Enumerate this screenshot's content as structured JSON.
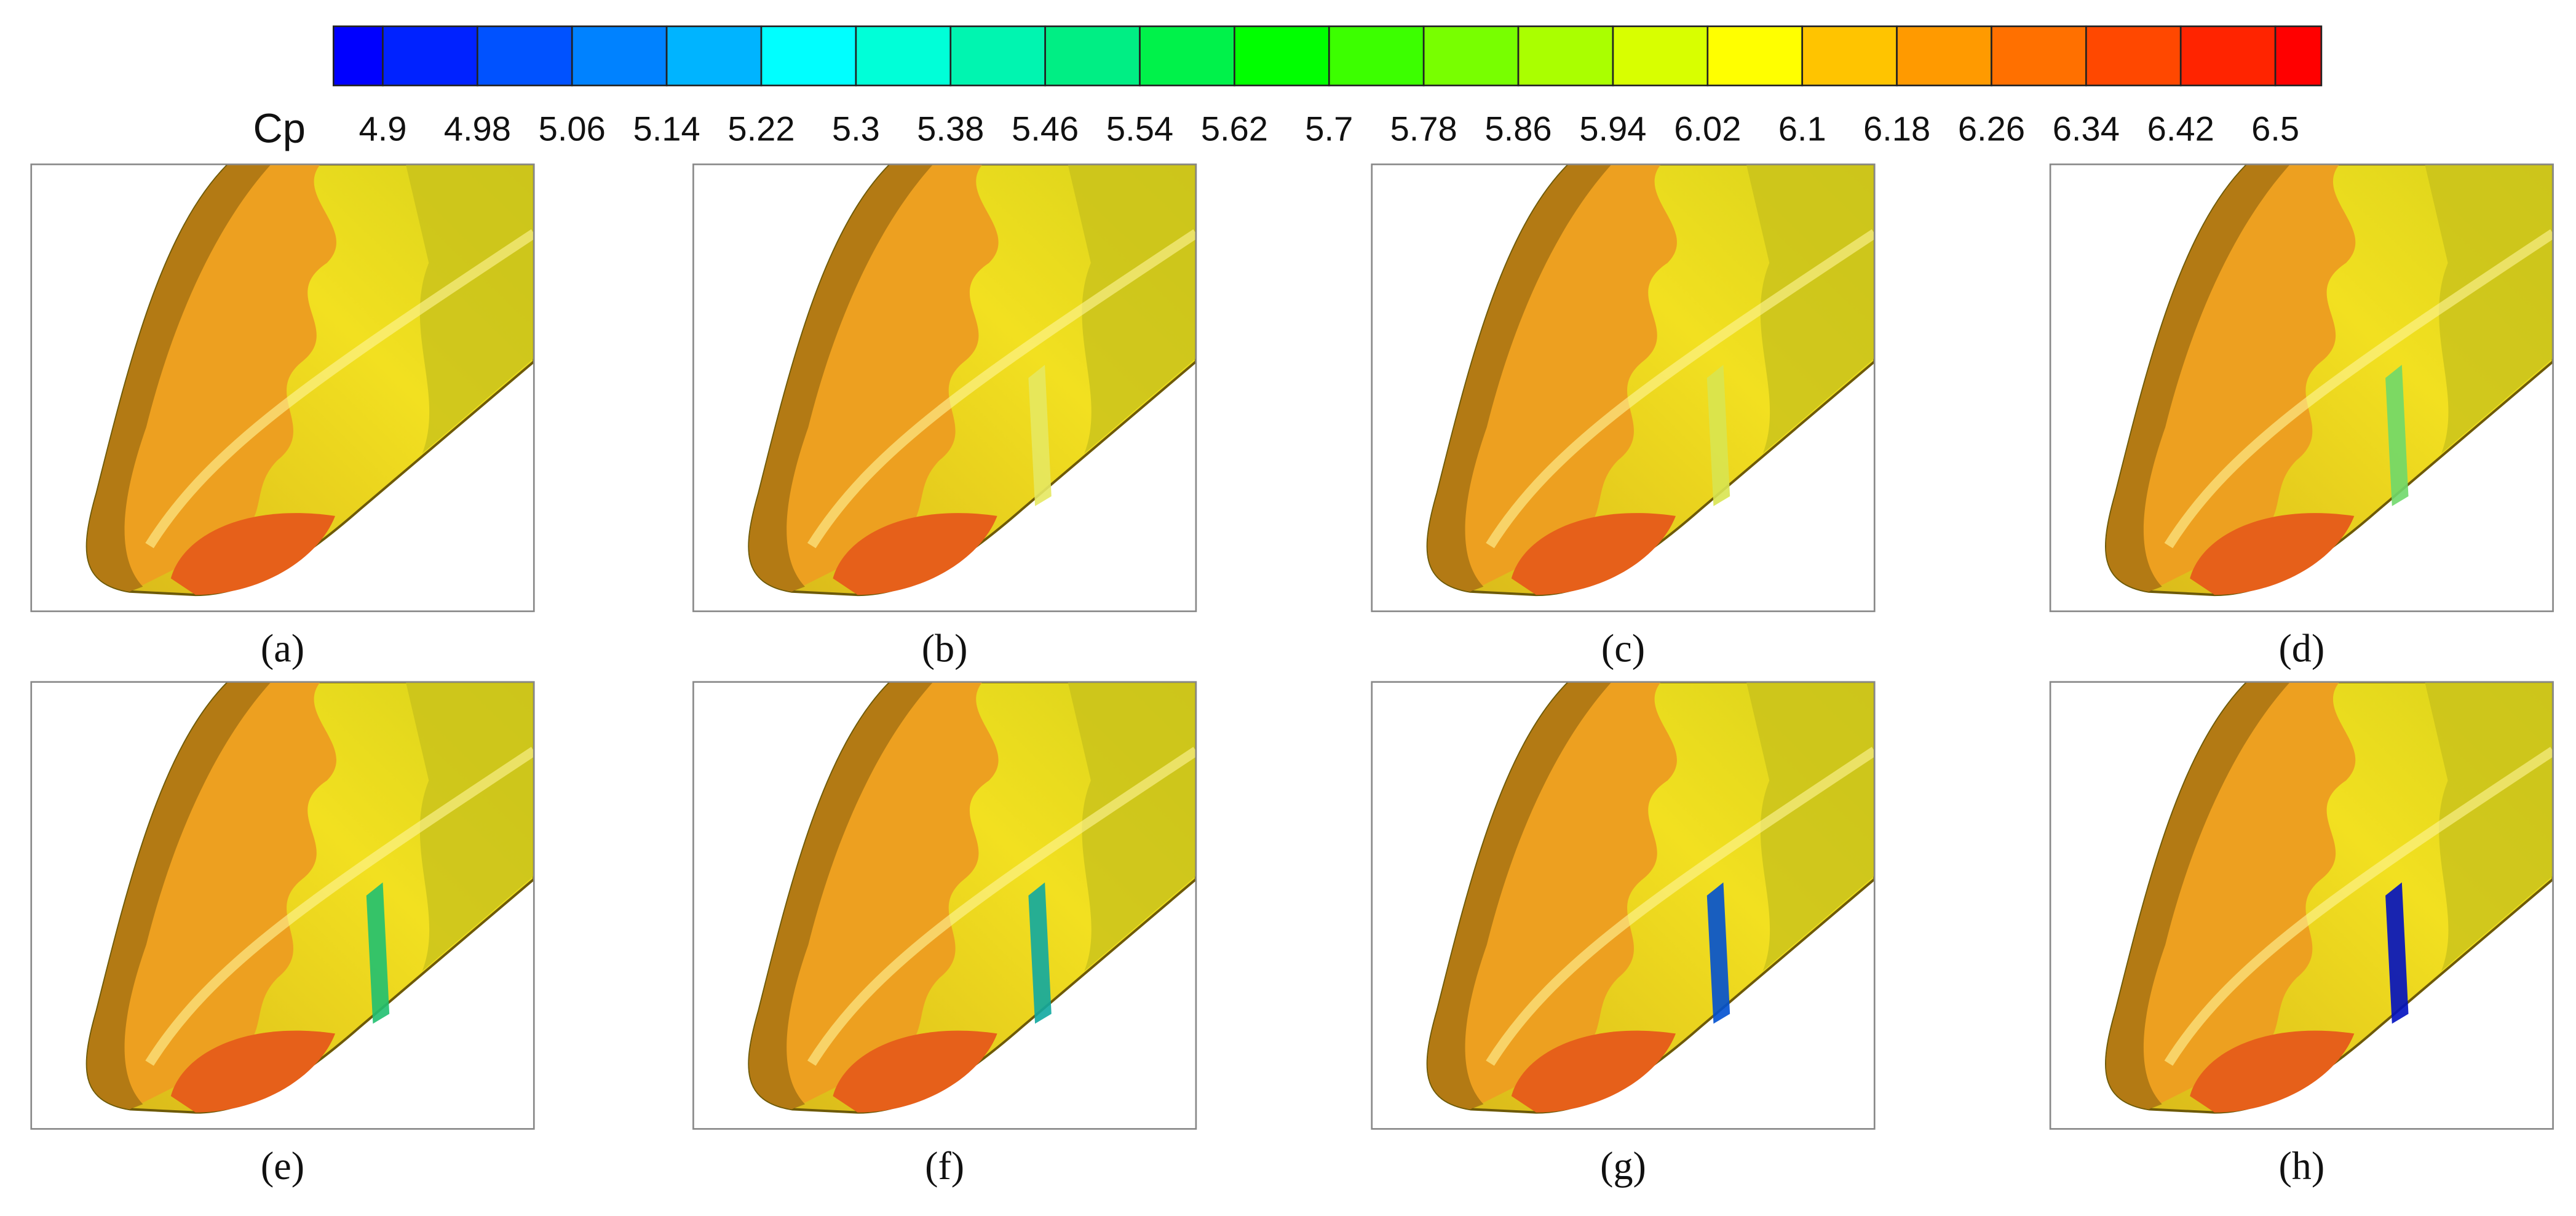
{
  "colorbar": {
    "title": "Cp",
    "labels": [
      "4.9",
      "4.98",
      "5.06",
      "5.14",
      "5.22",
      "5.3",
      "5.38",
      "5.46",
      "5.54",
      "5.62",
      "5.7",
      "5.78",
      "5.86",
      "5.94",
      "6.02",
      "6.1",
      "6.18",
      "6.26",
      "6.34",
      "6.42",
      "6.5"
    ]
  },
  "panels": [
    {
      "label": "(a)"
    },
    {
      "label": "(b)"
    },
    {
      "label": "(c)"
    },
    {
      "label": "(d)"
    },
    {
      "label": "(e)"
    },
    {
      "label": "(f)"
    },
    {
      "label": "(g)"
    },
    {
      "label": "(h)"
    }
  ]
}
